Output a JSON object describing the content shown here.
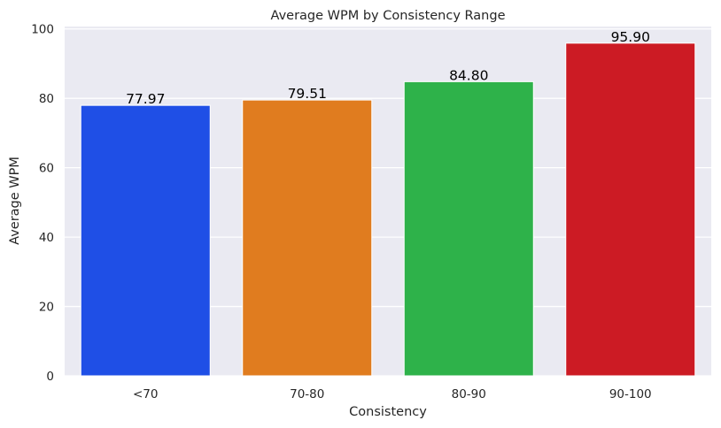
{
  "chart_data": {
    "type": "bar",
    "title": "Average WPM by Consistency Range",
    "xlabel": "Consistency",
    "ylabel": "Average WPM",
    "categories": [
      "<70",
      "70-80",
      "80-90",
      "90-100"
    ],
    "values": [
      77.97,
      79.51,
      84.8,
      95.9
    ],
    "data_labels": [
      "77.97",
      "79.51",
      "84.80",
      "95.90"
    ],
    "colors": [
      "#1f4fe6",
      "#e07c1f",
      "#2eb24a",
      "#cc1b24"
    ],
    "ylim": [
      0,
      100.7
    ],
    "yticks": [
      0,
      20,
      40,
      60,
      80,
      100
    ],
    "ytick_labels": [
      "0",
      "20",
      "40",
      "60",
      "80",
      "100"
    ],
    "grid": true,
    "background": "#eaeaf2",
    "legend": "none"
  }
}
